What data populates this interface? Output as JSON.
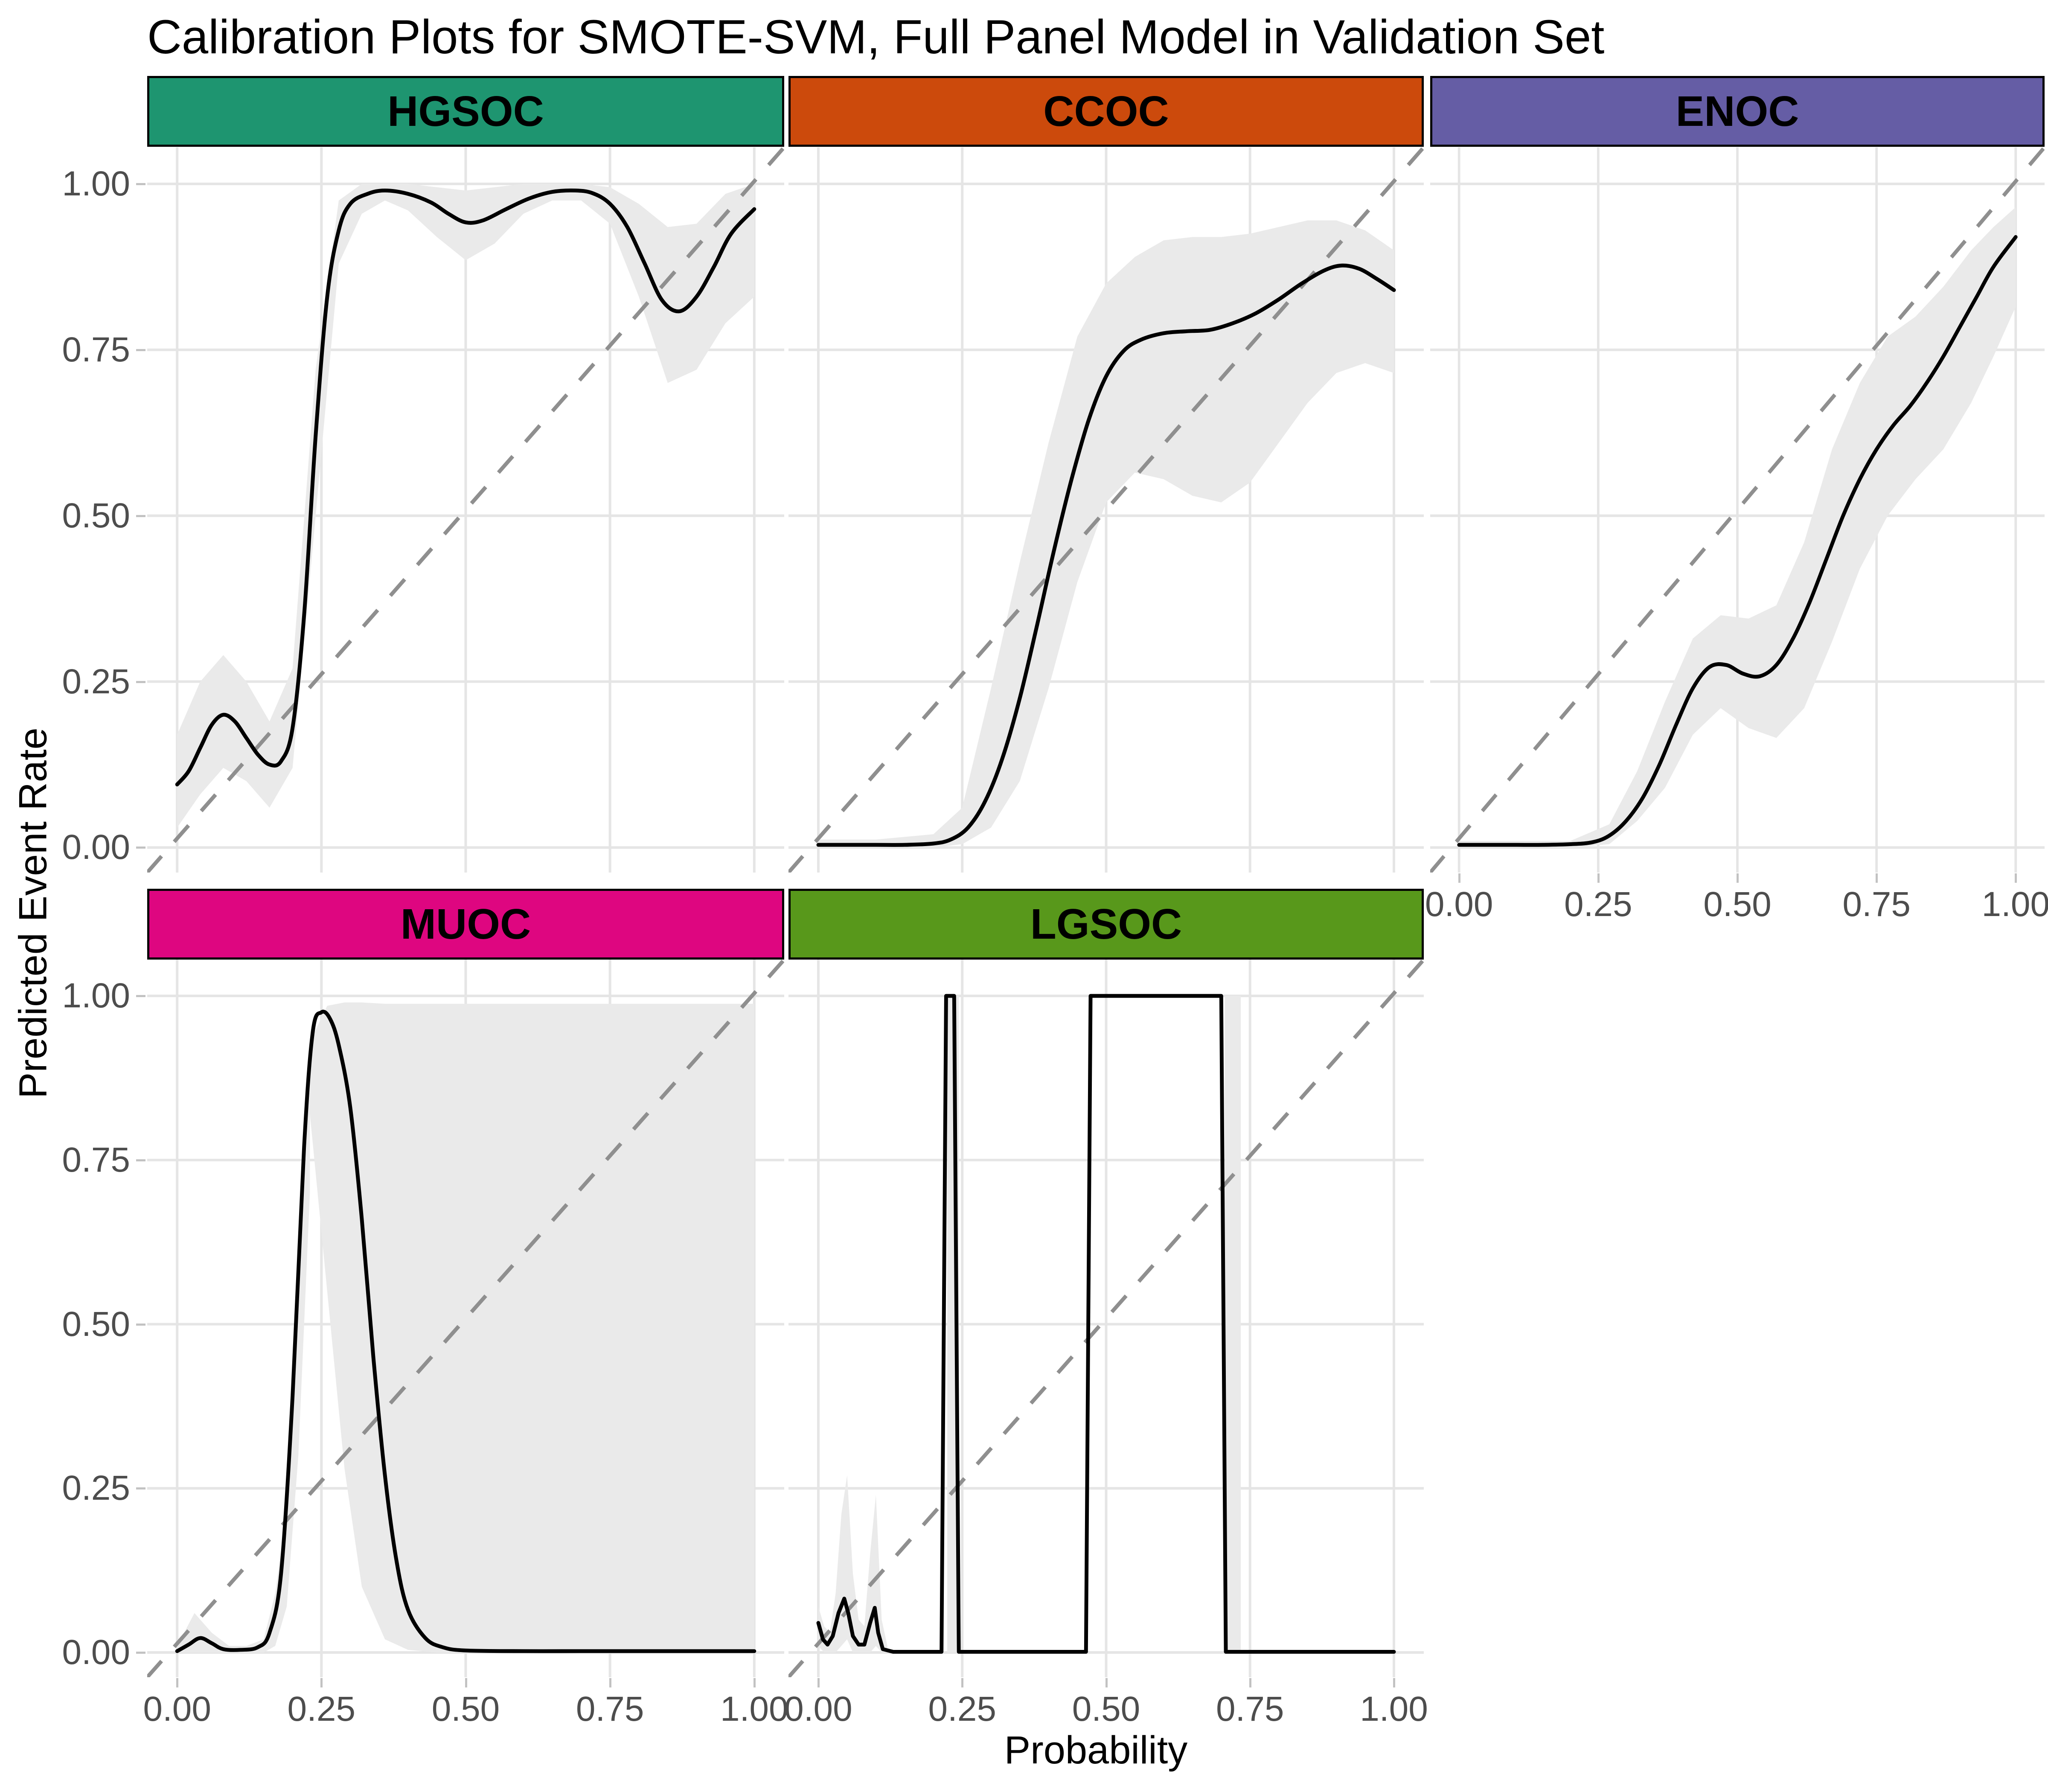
{
  "title": "Calibration Plots for SMOTE-SVM, Full Panel Model in Validation Set",
  "x_axis": {
    "label": "Probability",
    "ticks": [
      "0.00",
      "0.25",
      "0.50",
      "0.75",
      "1.00"
    ],
    "tick_values": [
      0,
      0.25,
      0.5,
      0.75,
      1
    ]
  },
  "y_axis": {
    "label": "Predicted Event Rate",
    "ticks": [
      "0.00",
      "0.25",
      "0.50",
      "0.75",
      "1.00"
    ],
    "tick_values": [
      0,
      0.25,
      0.5,
      0.75,
      1
    ]
  },
  "colors": {
    "background": "#ffffff",
    "grid": "#e5e5e5",
    "ribbon": "#eaeaea",
    "diagonal": "#8f8f8f",
    "curve": "#000000",
    "axis_text": "#4d4d4d",
    "strip_text": "#000000",
    "strip_border": "#000000"
  },
  "chart_data": {
    "type": "line",
    "title": "Calibration Plots for SMOTE-SVM, Full Panel Model in Validation Set",
    "xlabel": "Probability",
    "ylabel": "Predicted Event Rate",
    "xlim": [
      0,
      1
    ],
    "ylim": [
      0,
      1
    ],
    "grid": "major-only",
    "reference_line": "dashed identity diagonal y = x",
    "facets": [
      {
        "label": "HGSOC",
        "strip_color": "#1E9570",
        "row": 0,
        "col": 0,
        "own_x_axis": false,
        "interpolation": "smooth",
        "curve": {
          "x": [
            0,
            0.02,
            0.04,
            0.06,
            0.08,
            0.1,
            0.12,
            0.14,
            0.16,
            0.18,
            0.2,
            0.22,
            0.24,
            0.26,
            0.28,
            0.3,
            0.33,
            0.36,
            0.4,
            0.44,
            0.47,
            0.5,
            0.53,
            0.57,
            0.61,
            0.65,
            0.69,
            0.72,
            0.75,
            0.78,
            0.81,
            0.84,
            0.87,
            0.9,
            0.93,
            0.96,
            1.0
          ],
          "y": [
            0.095,
            0.115,
            0.15,
            0.185,
            0.2,
            0.19,
            0.165,
            0.14,
            0.125,
            0.13,
            0.18,
            0.35,
            0.62,
            0.83,
            0.93,
            0.97,
            0.985,
            0.99,
            0.985,
            0.972,
            0.955,
            0.942,
            0.945,
            0.962,
            0.978,
            0.988,
            0.99,
            0.986,
            0.97,
            0.935,
            0.88,
            0.825,
            0.808,
            0.83,
            0.875,
            0.925,
            0.962
          ]
        },
        "ribbons": [
          {
            "x": [
              0,
              0.04,
              0.08,
              0.12,
              0.16,
              0.2,
              0.24,
              0.28,
              0.32,
              0.36,
              0.4,
              0.45,
              0.5,
              0.55,
              0.6,
              0.65,
              0.7,
              0.75,
              0.8,
              0.85,
              0.9,
              0.95,
              1.0
            ],
            "lower": [
              0.03,
              0.08,
              0.12,
              0.1,
              0.06,
              0.12,
              0.5,
              0.88,
              0.955,
              0.975,
              0.96,
              0.92,
              0.885,
              0.91,
              0.955,
              0.975,
              0.975,
              0.94,
              0.83,
              0.7,
              0.72,
              0.79,
              0.83
            ],
            "upper": [
              0.17,
              0.25,
              0.29,
              0.25,
              0.19,
              0.27,
              0.72,
              0.975,
              1.0,
              1.0,
              1.0,
              0.995,
              0.99,
              0.995,
              1.0,
              1.0,
              1.0,
              0.995,
              0.97,
              0.935,
              0.94,
              0.985,
              1.0
            ]
          }
        ]
      },
      {
        "label": "CCOC",
        "strip_color": "#CC4A0C",
        "row": 0,
        "col": 1,
        "own_x_axis": false,
        "interpolation": "smooth",
        "curve": {
          "x": [
            0,
            0.05,
            0.1,
            0.15,
            0.2,
            0.23,
            0.26,
            0.29,
            0.32,
            0.35,
            0.38,
            0.41,
            0.44,
            0.47,
            0.5,
            0.53,
            0.56,
            0.6,
            0.64,
            0.68,
            0.72,
            0.76,
            0.8,
            0.84,
            0.88,
            0.91,
            0.94,
            0.97,
            1.0
          ],
          "y": [
            0.004,
            0.004,
            0.004,
            0.004,
            0.006,
            0.012,
            0.03,
            0.07,
            0.135,
            0.225,
            0.335,
            0.45,
            0.555,
            0.645,
            0.71,
            0.748,
            0.765,
            0.775,
            0.778,
            0.78,
            0.79,
            0.805,
            0.826,
            0.85,
            0.87,
            0.877,
            0.872,
            0.857,
            0.84
          ]
        },
        "ribbons": [
          {
            "x": [
              0,
              0.1,
              0.2,
              0.25,
              0.3,
              0.35,
              0.4,
              0.45,
              0.5,
              0.55,
              0.6,
              0.65,
              0.7,
              0.75,
              0.8,
              0.85,
              0.9,
              0.95,
              1.0
            ],
            "lower": [
              0.0,
              0.0,
              0.0,
              0.005,
              0.03,
              0.1,
              0.24,
              0.4,
              0.52,
              0.565,
              0.555,
              0.53,
              0.52,
              0.55,
              0.61,
              0.67,
              0.715,
              0.73,
              0.715
            ],
            "upper": [
              0.012,
              0.012,
              0.02,
              0.06,
              0.24,
              0.43,
              0.61,
              0.77,
              0.85,
              0.89,
              0.915,
              0.92,
              0.92,
              0.925,
              0.935,
              0.945,
              0.945,
              0.93,
              0.9
            ]
          }
        ]
      },
      {
        "label": "ENOC",
        "strip_color": "#655DA5",
        "row": 0,
        "col": 2,
        "own_x_axis": true,
        "interpolation": "smooth",
        "curve": {
          "x": [
            0,
            0.05,
            0.1,
            0.15,
            0.2,
            0.24,
            0.27,
            0.3,
            0.33,
            0.36,
            0.39,
            0.42,
            0.45,
            0.48,
            0.51,
            0.54,
            0.57,
            0.6,
            0.63,
            0.66,
            0.69,
            0.72,
            0.75,
            0.78,
            0.81,
            0.84,
            0.87,
            0.9,
            0.93,
            0.96,
            1.0
          ],
          "y": [
            0.004,
            0.004,
            0.004,
            0.004,
            0.005,
            0.008,
            0.018,
            0.04,
            0.075,
            0.125,
            0.185,
            0.24,
            0.272,
            0.275,
            0.262,
            0.258,
            0.275,
            0.315,
            0.37,
            0.435,
            0.5,
            0.555,
            0.6,
            0.636,
            0.665,
            0.7,
            0.74,
            0.785,
            0.83,
            0.875,
            0.92
          ]
        },
        "ribbons": [
          {
            "x": [
              0,
              0.1,
              0.2,
              0.27,
              0.32,
              0.37,
              0.42,
              0.47,
              0.52,
              0.57,
              0.62,
              0.67,
              0.72,
              0.77,
              0.82,
              0.87,
              0.92,
              0.96,
              1.0
            ],
            "lower": [
              0.0,
              0.0,
              0.0,
              0.005,
              0.04,
              0.09,
              0.17,
              0.21,
              0.18,
              0.165,
              0.21,
              0.31,
              0.42,
              0.5,
              0.555,
              0.6,
              0.67,
              0.74,
              0.815
            ],
            "upper": [
              0.01,
              0.01,
              0.01,
              0.035,
              0.115,
              0.22,
              0.315,
              0.35,
              0.345,
              0.365,
              0.46,
              0.6,
              0.7,
              0.77,
              0.8,
              0.845,
              0.9,
              0.935,
              0.965
            ]
          }
        ]
      },
      {
        "label": "MUOC",
        "strip_color": "#DE0680",
        "row": 1,
        "col": 0,
        "own_x_axis": true,
        "interpolation": "smooth",
        "curve": {
          "x": [
            0,
            0.02,
            0.04,
            0.06,
            0.08,
            0.11,
            0.14,
            0.16,
            0.18,
            0.2,
            0.22,
            0.235,
            0.25,
            0.265,
            0.28,
            0.3,
            0.32,
            0.34,
            0.36,
            0.38,
            0.4,
            0.43,
            0.46,
            0.5,
            0.6,
            0.7,
            0.8,
            0.9,
            1.0
          ],
          "y": [
            0.002,
            0.012,
            0.022,
            0.014,
            0.005,
            0.004,
            0.008,
            0.03,
            0.12,
            0.39,
            0.77,
            0.945,
            0.975,
            0.965,
            0.925,
            0.83,
            0.66,
            0.45,
            0.27,
            0.14,
            0.065,
            0.022,
            0.008,
            0.003,
            0.002,
            0.002,
            0.002,
            0.002,
            0.002
          ]
        },
        "ribbons": [
          {
            "x": [
              0,
              0.03,
              0.06,
              0.09,
              0.12,
              0.15,
              0.17,
              0.19,
              0.21,
              0.23
            ],
            "lower": [
              0,
              0,
              0,
              0,
              0,
              0,
              0.01,
              0.07,
              0.3,
              0.7
            ],
            "upper": [
              0.01,
              0.06,
              0.03,
              0.01,
              0.01,
              0.02,
              0.09,
              0.22,
              0.52,
              0.88
            ]
          },
          {
            "x": [
              0.23,
              0.26,
              0.29,
              0.32,
              0.36,
              0.4,
              0.45,
              0.5,
              0.6,
              0.7,
              0.8,
              0.9,
              1.0
            ],
            "lower": [
              0.82,
              0.55,
              0.28,
              0.1,
              0.02,
              0.004,
              0,
              0,
              0,
              0,
              0,
              0,
              0
            ],
            "upper": [
              0.93,
              0.985,
              0.99,
              0.99,
              0.988,
              0.988,
              0.988,
              0.988,
              0.988,
              0.988,
              0.988,
              0.988,
              0.988
            ]
          }
        ]
      },
      {
        "label": "LGSOC",
        "strip_color": "#58981B",
        "row": 1,
        "col": 1,
        "own_x_axis": true,
        "interpolation": "linear",
        "curve": {
          "x": [
            0,
            0.008,
            0.016,
            0.025,
            0.035,
            0.045,
            0.052,
            0.06,
            0.07,
            0.08,
            0.09,
            0.098,
            0.104,
            0.112,
            0.13,
            0.16,
            0.19,
            0.214,
            0.222,
            0.236,
            0.244,
            0.27,
            0.32,
            0.38,
            0.43,
            0.465,
            0.473,
            0.52,
            0.58,
            0.64,
            0.7,
            0.708,
            0.75,
            0.82,
            0.9,
            1.0
          ],
          "y": [
            0.045,
            0.02,
            0.012,
            0.025,
            0.06,
            0.082,
            0.06,
            0.025,
            0.012,
            0.012,
            0.045,
            0.068,
            0.03,
            0.005,
            0.001,
            0.001,
            0.001,
            0.001,
            1.0,
            1.0,
            0.001,
            0.001,
            0.001,
            0.001,
            0.001,
            0.001,
            1.0,
            1.0,
            1.0,
            1.0,
            1.0,
            0.001,
            0.001,
            0.001,
            0.001,
            0.001
          ]
        },
        "ribbons": [
          {
            "x": [
              0,
              0.01,
              0.02,
              0.03,
              0.04,
              0.05,
              0.06,
              0.07,
              0.08,
              0.09,
              0.1,
              0.11,
              0.12
            ],
            "lower": [
              0.01,
              0,
              0,
              0,
              0.01,
              0.02,
              0,
              0,
              0,
              0,
              0.01,
              0,
              0
            ],
            "upper": [
              0.07,
              0.04,
              0.03,
              0.09,
              0.21,
              0.27,
              0.12,
              0.05,
              0.04,
              0.15,
              0.24,
              0.05,
              0.01
            ]
          },
          {
            "x": [
              0.224,
              0.244
            ],
            "lower": [
              0,
              0
            ],
            "upper": [
              1,
              1
            ]
          },
          {
            "x": [
              0.706,
              0.734
            ],
            "lower": [
              0,
              0
            ],
            "upper": [
              1,
              1
            ]
          }
        ]
      }
    ]
  }
}
